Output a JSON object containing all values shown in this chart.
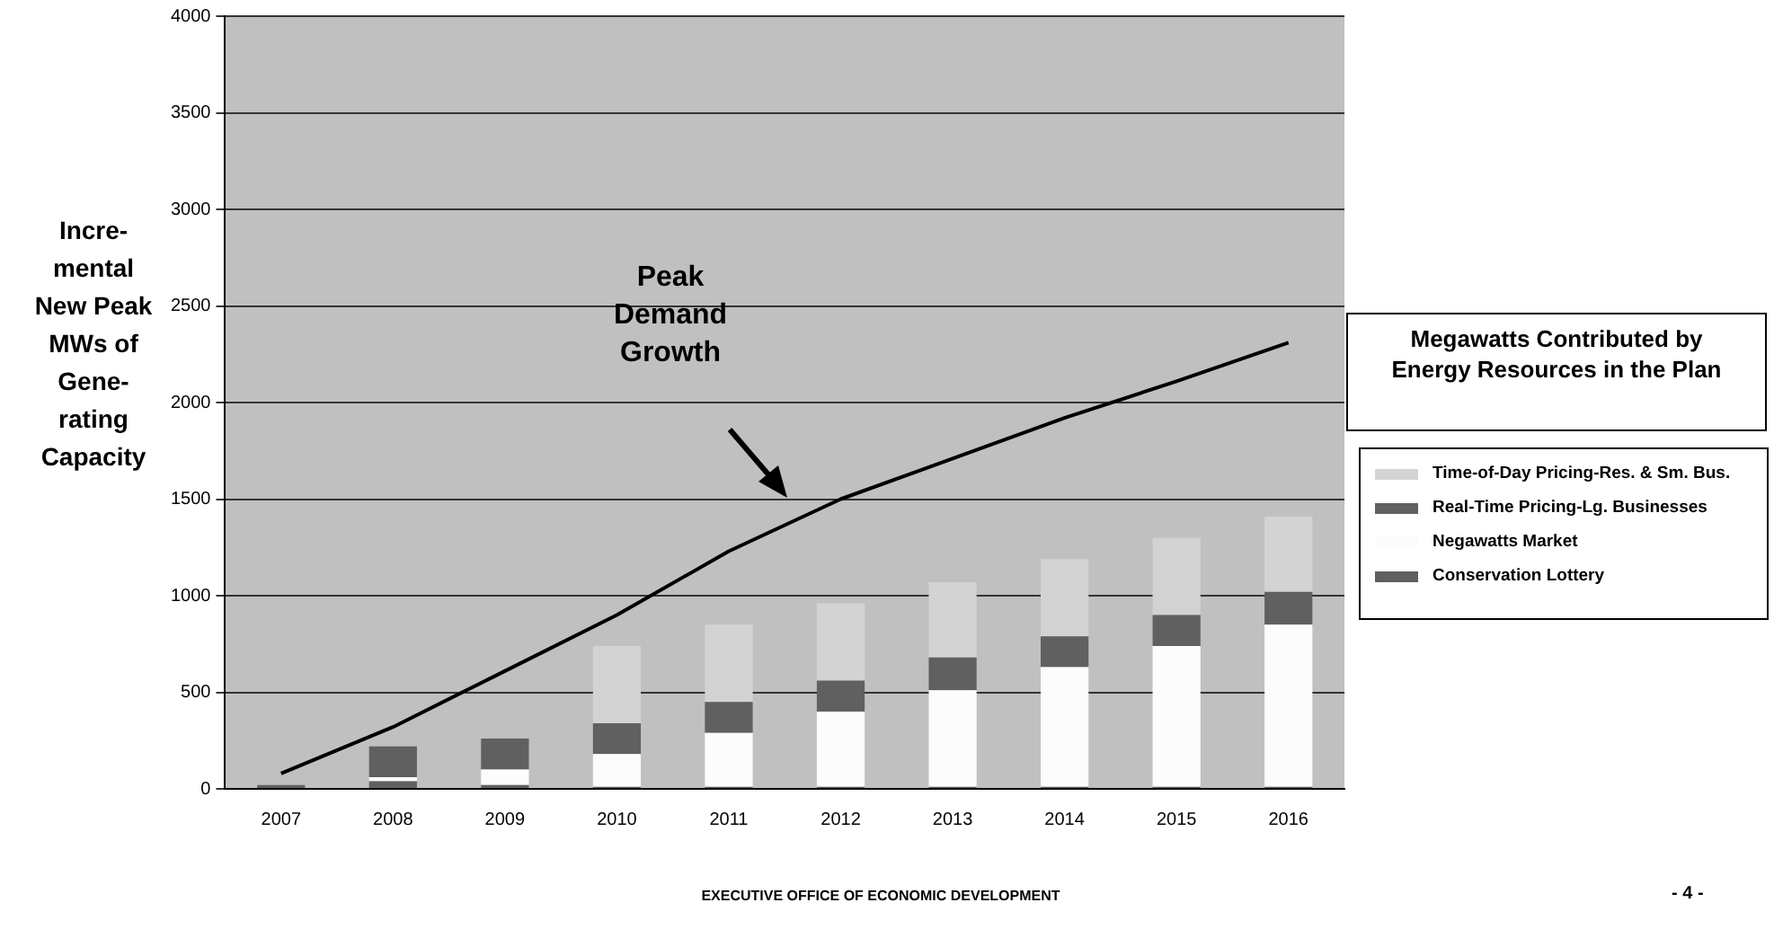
{
  "chart_data": {
    "type": "bar",
    "stacked": true,
    "categories": [
      "2007",
      "2008",
      "2009",
      "2010",
      "2011",
      "2012",
      "2013",
      "2014",
      "2015",
      "2016"
    ],
    "series": [
      {
        "name": "Conservation Lottery",
        "color": "#606060",
        "values": [
          20,
          40,
          20,
          10,
          10,
          10,
          10,
          10,
          10,
          10
        ]
      },
      {
        "name": "Negawatts Market",
        "color": "#fcfcfc",
        "values": [
          0,
          20,
          80,
          170,
          280,
          390,
          500,
          620,
          730,
          840
        ]
      },
      {
        "name": "Real-Time Pricing-Lg. Businesses",
        "color": "#606060",
        "values": [
          0,
          160,
          160,
          160,
          160,
          160,
          170,
          160,
          160,
          170
        ]
      },
      {
        "name": "Time-of-Day Pricing-Res. & Sm. Bus.",
        "color": "#d3d3d3",
        "values": [
          0,
          0,
          0,
          400,
          400,
          400,
          390,
          400,
          400,
          390
        ]
      },
      {
        "type": "line",
        "color": "#000000",
        "values": [
          80,
          320,
          610,
          900,
          1230,
          1500,
          1710,
          1920,
          2110,
          2310
        ]
      }
    ],
    "ylim": [
      0,
      4000
    ],
    "yticks": [
      0,
      500,
      1000,
      1500,
      2000,
      2500,
      3000,
      3500,
      4000
    ],
    "grid": "y",
    "legend": "right",
    "marker": "none",
    "ylabel": "Incre-\nmental\nNew Peak\nMWs of\nGene-\nrating\nCapacity",
    "legend_title": "Megawatts Contributed by Energy Resources in the Plan",
    "annotations": [
      "Peak\nDemand\nGrowth",
      "EXECUTIVE OFFICE OF ECONOMIC DEVELOPMENT",
      "- 4 -"
    ]
  }
}
